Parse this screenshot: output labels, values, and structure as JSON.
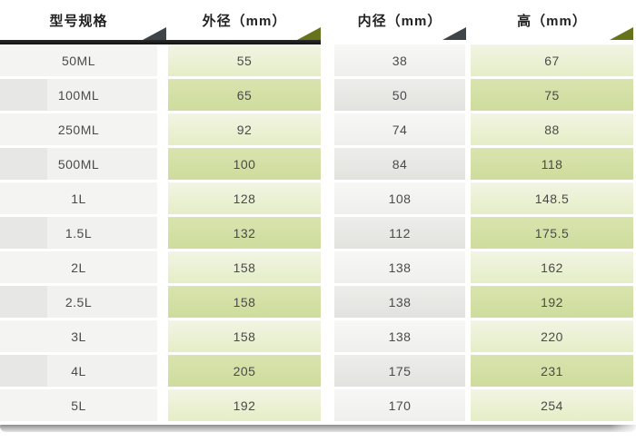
{
  "chart_data": {
    "type": "table",
    "title": "",
    "columns": [
      {
        "label": "型号规格",
        "accent": "#3e4448"
      },
      {
        "label": "外径（mm）",
        "accent": "#66731b"
      },
      {
        "label": "内径（mm）",
        "accent": "#3e4448"
      },
      {
        "label": "高（mm）",
        "accent": "#66731b"
      }
    ],
    "rows": [
      [
        "50ML",
        "55",
        "38",
        "67"
      ],
      [
        "100ML",
        "65",
        "50",
        "75"
      ],
      [
        "250ML",
        "92",
        "74",
        "88"
      ],
      [
        "500ML",
        "100",
        "84",
        "118"
      ],
      [
        "1L",
        "128",
        "108",
        "148.5"
      ],
      [
        "1.5L",
        "132",
        "112",
        "175.5"
      ],
      [
        "2L",
        "158",
        "138",
        "162"
      ],
      [
        "2.5L",
        "158",
        "138",
        "192"
      ],
      [
        "3L",
        "158",
        "138",
        "220"
      ],
      [
        "4L",
        "205",
        "175",
        "231"
      ],
      [
        "5L",
        "192",
        "170",
        "254"
      ]
    ],
    "layout_hints": {
      "grid": "striped rows, separated columns",
      "legend": "none"
    }
  },
  "colors": {
    "header_text": "#222222",
    "header_bar": "#1a1a1a",
    "triangle_dark": "#3e4448",
    "triangle_olive": "#66731b",
    "green_row_light": "#ecf2d6",
    "green_row_dark": "#d4e0a6",
    "gray_row_light": "#f4f4f3",
    "gray_row_dark": "#e7e7e5",
    "body_text": "#4a4a4a",
    "bottom_shadow": "#8d8d8d"
  }
}
